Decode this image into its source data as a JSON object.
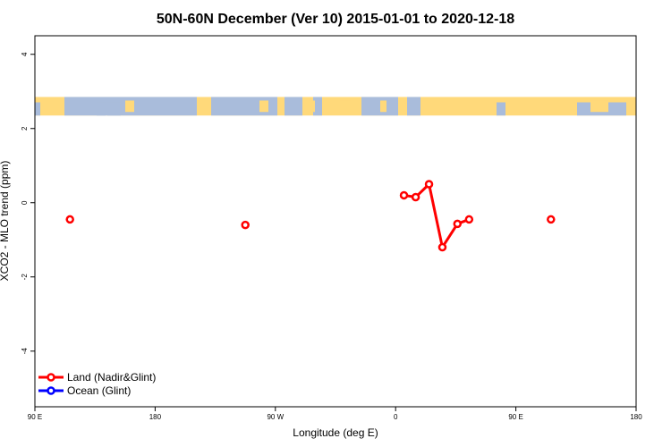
{
  "chart_data": {
    "type": "line",
    "title": "50N-60N December (Ver 10)   2015-01-01 to 2020-12-18",
    "xlabel": "Longitude (deg E)",
    "ylabel": "XCO2 - MLO trend (ppm)",
    "xlim": [
      90,
      450
    ],
    "ylim": [
      -5.5,
      4.5
    ],
    "x_ticks": [
      {
        "value": 90,
        "label": "90 E"
      },
      {
        "value": 162,
        "label": "180"
      },
      {
        "value": 234,
        "label": "90 W"
      },
      {
        "value": 306,
        "label": "0"
      },
      {
        "value": 378,
        "label": "90 E"
      },
      {
        "value": 450,
        "label": "180"
      }
    ],
    "y_ticks": [
      {
        "value": -4,
        "label": "-4"
      },
      {
        "value": -2,
        "label": "-2"
      },
      {
        "value": 0,
        "label": "0"
      },
      {
        "value": 2,
        "label": "2"
      },
      {
        "value": 4,
        "label": "4"
      }
    ],
    "map_band": {
      "y_range": [
        2.35,
        2.85
      ],
      "land_color": "#ffd97a",
      "ocean_color": "#a9bcdb"
    },
    "series": [
      {
        "name": "Land (Nadir&Glint)",
        "color": "#ff0000",
        "segments": [
          [
            {
              "x": 111,
              "y": -0.45
            }
          ],
          [
            {
              "x": 216,
              "y": -0.6
            }
          ],
          [
            {
              "x": 311,
              "y": 0.2
            },
            {
              "x": 318,
              "y": 0.15
            },
            {
              "x": 326,
              "y": 0.5
            },
            {
              "x": 334,
              "y": -1.2
            },
            {
              "x": 343,
              "y": -0.57
            },
            {
              "x": 350,
              "y": -0.45
            }
          ],
          [
            {
              "x": 399,
              "y": -0.45
            }
          ]
        ]
      },
      {
        "name": "Ocean (Glint)",
        "color": "#0000ff",
        "segments": []
      }
    ],
    "legend_position": "bottom-left",
    "grid": false
  }
}
